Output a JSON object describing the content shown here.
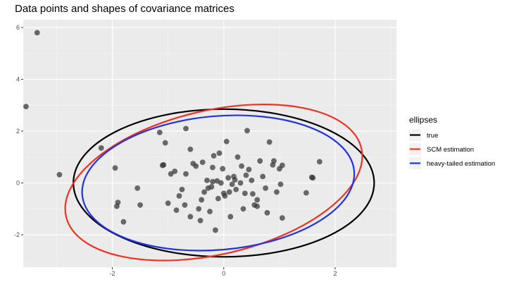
{
  "chart_data": {
    "type": "scatter",
    "title": "Data points and shapes of covariance matrices",
    "xlabel": "",
    "ylabel": "",
    "xlim": [
      -3.6,
      3.1
    ],
    "ylim": [
      -3.25,
      6.3
    ],
    "x_ticks": [
      -2,
      0,
      2
    ],
    "y_ticks": [
      -2,
      0,
      2,
      4,
      6
    ],
    "grid": true,
    "legend": {
      "title": "ellipses",
      "placement": "right",
      "entries": [
        "true",
        "SCM estimation",
        "heavy-tailed estimation"
      ]
    },
    "ellipses": [
      {
        "name": "true",
        "color": "#000000",
        "cx": 0.0,
        "cy": 0.0,
        "rx": 2.7,
        "ry": 2.85,
        "angle": 0
      },
      {
        "name": "SCM estimation",
        "color": "#EE3322",
        "cx": -0.18,
        "cy": 0.02,
        "rx": 2.72,
        "ry": 2.78,
        "angle": -13
      },
      {
        "name": "heavy-tailed estimation",
        "color": "#2233DD",
        "cx": -0.1,
        "cy": 0.0,
        "rx": 2.45,
        "ry": 2.58,
        "angle": -5
      }
    ],
    "points": {
      "color": "#333333",
      "x": [
        -3.35,
        -3.55,
        -2.95,
        -2.2,
        -1.95,
        -1.9,
        -1.92,
        -1.8,
        -1.55,
        -1.5,
        -1.15,
        -1.1,
        -1.08,
        -1.05,
        -1.0,
        -0.95,
        -0.88,
        -0.85,
        -0.8,
        -0.75,
        -0.7,
        -0.68,
        -0.6,
        -0.55,
        -0.5,
        -0.45,
        -0.42,
        -0.38,
        -0.35,
        -0.3,
        -0.28,
        -0.25,
        -0.22,
        -0.2,
        -0.18,
        -0.15,
        -0.12,
        -0.1,
        -0.08,
        -0.05,
        0.0,
        0.02,
        0.05,
        0.08,
        0.1,
        0.12,
        0.15,
        0.18,
        0.2,
        0.22,
        0.25,
        0.3,
        0.32,
        0.35,
        0.38,
        0.4,
        0.42,
        0.45,
        0.5,
        0.52,
        0.55,
        0.6,
        0.65,
        0.7,
        0.75,
        0.78,
        0.82,
        0.88,
        0.9,
        0.95,
        1.0,
        1.02,
        1.05,
        1.05,
        1.48,
        1.58,
        1.6,
        1.72,
        -0.02,
        -0.6,
        -0.4,
        -0.68,
        -0.2,
        0.6
      ],
      "y": [
        5.8,
        2.95,
        0.32,
        1.35,
        0.58,
        -0.75,
        -0.9,
        -1.5,
        -0.2,
        -0.85,
        1.95,
        0.68,
        0.7,
        1.55,
        -0.78,
        0.35,
        0.45,
        -1.05,
        -0.5,
        -0.25,
        -0.85,
        2.1,
        1.3,
        0.75,
        0.65,
        -1.0,
        -1.45,
        0.8,
        -0.35,
        0.1,
        -0.2,
        -1.1,
        -0.15,
        0.05,
        1.05,
        -1.82,
        0.08,
        -0.6,
        1.15,
        0.0,
        -0.4,
        -0.5,
        1.6,
        0.2,
        -0.35,
        -1.3,
        -0.05,
        0.25,
        0.12,
        -0.25,
        1.0,
        0.0,
        0.65,
        -1.0,
        -0.4,
        0.3,
        2.02,
        0.52,
        0.1,
        -0.42,
        -0.85,
        -0.65,
        0.85,
        0.25,
        -0.2,
        -1.15,
        1.58,
        0.7,
        0.85,
        -0.35,
        0.55,
        -0.05,
        -1.35,
        0.68,
        -0.38,
        0.22,
        0.2,
        0.82,
        0.55,
        -1.3,
        -0.65,
        0.35,
        0.6,
        -0.9
      ]
    }
  }
}
